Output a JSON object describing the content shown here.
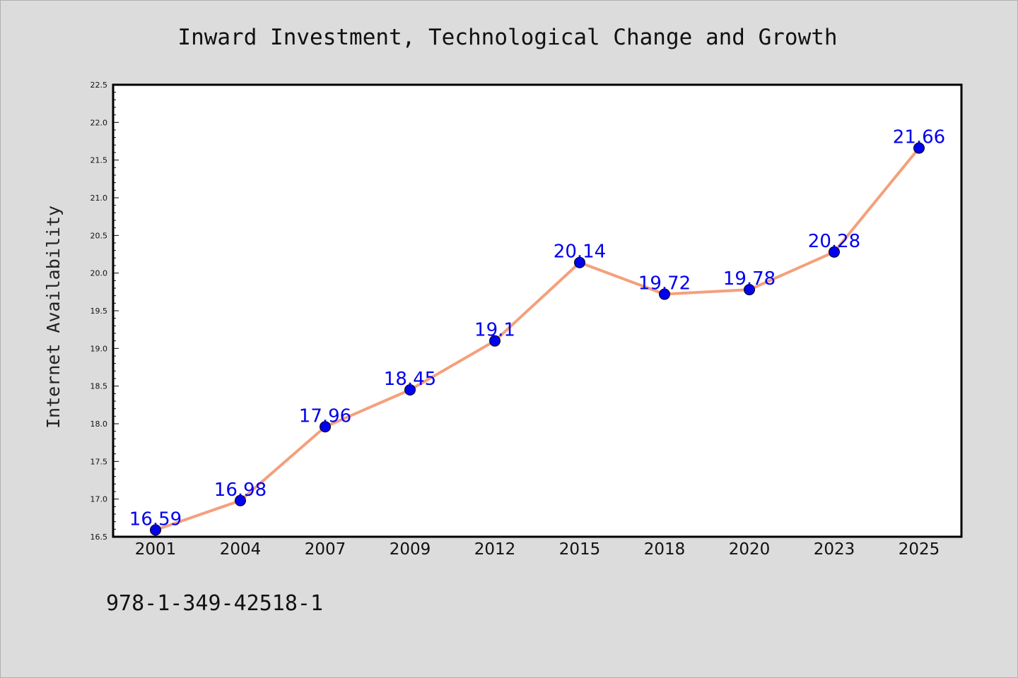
{
  "chart_data": {
    "type": "line",
    "title": "Inward Investment, Technological Change and Growth",
    "xlabel": "",
    "ylabel": "Internet Availability",
    "categories": [
      "2001",
      "2004",
      "2007",
      "2009",
      "2012",
      "2015",
      "2018",
      "2020",
      "2023",
      "2025"
    ],
    "series": [
      {
        "values": [
          16.59,
          16.98,
          17.96,
          18.45,
          19.1,
          20.14,
          19.72,
          19.78,
          20.28,
          21.66
        ],
        "line_color": "#f4a07c",
        "marker_color": "#0000ee"
      }
    ],
    "data_labels": [
      "16.59",
      "16.98",
      "17.96",
      "18.45",
      "19.1",
      "20.14",
      "19.72",
      "19.78",
      "20.28",
      "21.66"
    ],
    "ylim": [
      16.5,
      22.5
    ],
    "yticks": [
      "16.5",
      "17.0",
      "17.5",
      "18.0",
      "18.5",
      "19.0",
      "19.5",
      "20.0",
      "20.5",
      "21.0",
      "21.5",
      "22.0",
      "22.5"
    ],
    "grid": false,
    "legend": "none"
  },
  "footer": {
    "isbn": "978-1-349-42518-1"
  }
}
